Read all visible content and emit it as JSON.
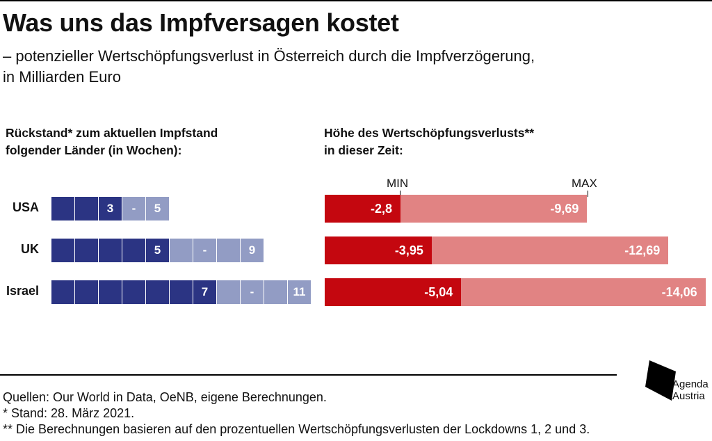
{
  "header": {
    "title": "Was uns das Impfversagen kostet",
    "subtitle_line1": "– potenzieller Wertschöpfungsverlust in Österreich durch die Impfverzögerung,",
    "subtitle_line2": "in Milliarden Euro"
  },
  "left_panel": {
    "heading_line1": "Rückstand* zum aktuellen Impfstand",
    "heading_line2": "folgender Länder (in Wochen):"
  },
  "right_panel": {
    "heading_line1": "Höhe des Wertschöpfungsverlusts**",
    "heading_line2": "in dieser Zeit:",
    "min_label": "MIN",
    "max_label": "MAX"
  },
  "chart_data": [
    {
      "type": "bar",
      "title": "Rückstand* zum aktuellen Impfstand folgender Länder (in Wochen):",
      "categories": [
        "USA",
        "UK",
        "Israel"
      ],
      "series": [
        {
          "name": "min",
          "values": [
            3,
            5,
            7
          ]
        },
        {
          "name": "max",
          "values": [
            5,
            9,
            11
          ]
        }
      ],
      "range_separator": "-",
      "colors": {
        "min": "#2b3483",
        "max": "#929cc4"
      }
    },
    {
      "type": "bar",
      "title": "Höhe des Wertschöpfungsverlusts** in dieser Zeit:",
      "categories": [
        "USA",
        "UK",
        "Israel"
      ],
      "series": [
        {
          "name": "MIN",
          "values": [
            -2.8,
            -3.95,
            -5.04
          ],
          "labels": [
            "-2,8",
            "-3,95",
            "-5,04"
          ]
        },
        {
          "name": "MAX",
          "values": [
            -9.69,
            -12.69,
            -14.06
          ],
          "labels": [
            "-9,69",
            "-12,69",
            "-14,06"
          ]
        }
      ],
      "colors": {
        "MIN": "#c4070f",
        "MAX": "#e18383"
      }
    }
  ],
  "footer": {
    "sources": "Quellen: Our World in Data, OeNB, eigene Berechnungen.",
    "note1": "* Stand: 28. März 2021.",
    "note2": "** Die Berechnungen basieren auf den prozentuellen Wertschöpfungsverlusten der Lockdowns 1, 2 und 3."
  },
  "logo": {
    "line1": "Agenda",
    "line2": "Austria"
  }
}
